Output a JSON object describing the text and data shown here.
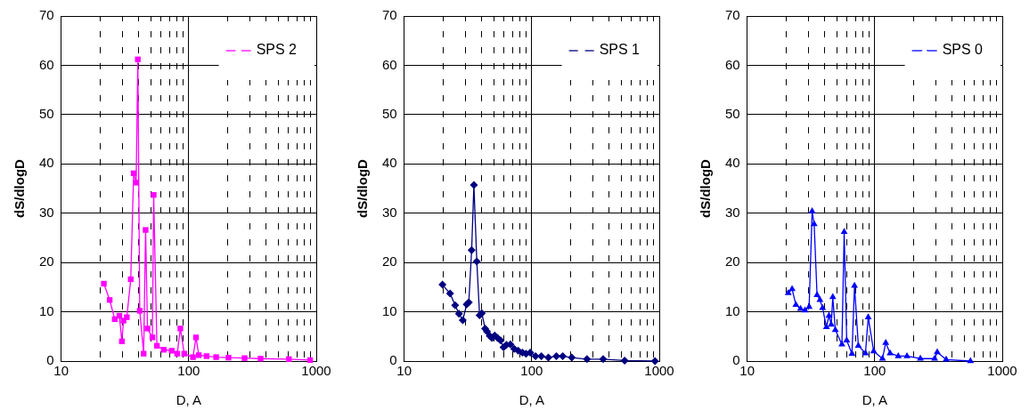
{
  "chart_data": [
    {
      "type": "line",
      "xlabel": "D, A",
      "ylabel": "dS/dlogD",
      "log": "x",
      "grid": true,
      "legend": "top right",
      "marker": "square",
      "xlim": [
        10,
        1000
      ],
      "ylim": [
        0,
        70
      ],
      "xticks": [
        10,
        {
          "value": 20,
          "label": null
        },
        {
          "value": 30,
          "label": null
        },
        {
          "value": 40,
          "label": null
        },
        {
          "value": 50,
          "label": null
        },
        {
          "value": 60,
          "label": null
        },
        {
          "value": 70,
          "label": null
        },
        {
          "value": 80,
          "label": null
        },
        {
          "value": 90,
          "label": null
        },
        100,
        {
          "value": 200,
          "label": null
        },
        {
          "value": 300,
          "label": null
        },
        {
          "value": 400,
          "label": null
        },
        {
          "value": 500,
          "label": null
        },
        {
          "value": 600,
          "label": null
        },
        {
          "value": 700,
          "label": null
        },
        {
          "value": 800,
          "label": null
        },
        {
          "value": 900,
          "label": null
        },
        1000
      ],
      "yticks": [
        0,
        10,
        20,
        30,
        40,
        50,
        60,
        70
      ],
      "series": [
        {
          "name": "SPS 2",
          "color": "#ff00ff",
          "x": [
            21.6,
            24.0,
            26.3,
            28.6,
            29.9,
            30.8,
            32.7,
            35.1,
            37.0,
            38.7,
            39.9,
            41.3,
            44.3,
            45.9,
            47.5,
            51.9,
            53.1,
            56.3,
            63.7,
            73.6,
            81.2,
            86.0,
            92.2,
            108,
            114,
            120,
            138,
            164,
            205,
            274,
            366,
            610,
            895
          ],
          "values": [
            15.7,
            12.4,
            8.5,
            9.2,
            4.0,
            8.2,
            8.9,
            16.6,
            38.1,
            36.2,
            61.2,
            10.2,
            1.5,
            26.6,
            6.6,
            4.8,
            33.7,
            3.1,
            2.3,
            2.1,
            1.5,
            6.6,
            1.5,
            0.8,
            4.8,
            1.2,
            1.0,
            0.8,
            0.7,
            0.6,
            0.5,
            0.4,
            0.2
          ]
        }
      ]
    },
    {
      "type": "line",
      "xlabel": "D, A",
      "ylabel": "dS/dlogD",
      "log": "x",
      "grid": true,
      "legend": "top right",
      "marker": "diamond",
      "xlim": [
        10,
        1000
      ],
      "ylim": [
        0,
        70
      ],
      "xticks": [
        10,
        {
          "value": 20,
          "label": null
        },
        {
          "value": 30,
          "label": null
        },
        {
          "value": 40,
          "label": null
        },
        {
          "value": 50,
          "label": null
        },
        {
          "value": 60,
          "label": null
        },
        {
          "value": 70,
          "label": null
        },
        {
          "value": 80,
          "label": null
        },
        {
          "value": 90,
          "label": null
        },
        100,
        {
          "value": 200,
          "label": null
        },
        {
          "value": 300,
          "label": null
        },
        {
          "value": 400,
          "label": null
        },
        {
          "value": 500,
          "label": null
        },
        {
          "value": 600,
          "label": null
        },
        {
          "value": 700,
          "label": null
        },
        {
          "value": 800,
          "label": null
        },
        {
          "value": 900,
          "label": null
        },
        1000
      ],
      "yticks": [
        0,
        10,
        20,
        30,
        40,
        50,
        60,
        70
      ],
      "series": [
        {
          "name": "SPS 1",
          "color": "#000080",
          "x": [
            19.95,
            22.9,
            25.1,
            26.9,
            28.8,
            30.9,
            32.1,
            33.8,
            35.2,
            37.1,
            39.0,
            40.6,
            43.1,
            44.6,
            46.9,
            48.7,
            51.3,
            54.0,
            57.0,
            60.1,
            63.4,
            68.1,
            73.0,
            78.3,
            84.5,
            90.2,
            97.2,
            107,
            119,
            135,
            156,
            175,
            206,
            271,
            363,
            535,
            926
          ],
          "values": [
            15.5,
            13.7,
            11.3,
            9.6,
            8.3,
            11.5,
            11.9,
            22.5,
            35.7,
            20.2,
            9.3,
            9.7,
            6.6,
            6.0,
            5.1,
            4.7,
            5.2,
            4.7,
            4.2,
            2.8,
            3.3,
            3.4,
            2.5,
            2.1,
            1.7,
            1.5,
            1.7,
            1.0,
            1.0,
            0.7,
            1.0,
            1.0,
            0.7,
            0.4,
            0.4,
            0.1,
            0.0
          ]
        }
      ]
    },
    {
      "type": "line",
      "xlabel": "D, A",
      "ylabel": "dS/dlogD",
      "log": "x",
      "grid": true,
      "legend": "top right",
      "marker": "triangle",
      "xlim": [
        10,
        1000
      ],
      "ylim": [
        0,
        70
      ],
      "xticks": [
        10,
        {
          "value": 20,
          "label": null
        },
        {
          "value": 30,
          "label": null
        },
        {
          "value": 40,
          "label": null
        },
        {
          "value": 50,
          "label": null
        },
        {
          "value": 60,
          "label": null
        },
        {
          "value": 70,
          "label": null
        },
        {
          "value": 80,
          "label": null
        },
        {
          "value": 90,
          "label": null
        },
        100,
        {
          "value": 200,
          "label": null
        },
        {
          "value": 300,
          "label": null
        },
        {
          "value": 400,
          "label": null
        },
        {
          "value": 500,
          "label": null
        },
        {
          "value": 600,
          "label": null
        },
        {
          "value": 700,
          "label": null
        },
        {
          "value": 800,
          "label": null
        },
        {
          "value": 900,
          "label": null
        },
        1000
      ],
      "yticks": [
        0,
        10,
        20,
        30,
        40,
        50,
        60,
        70
      ],
      "series": [
        {
          "name": "SPS 0",
          "color": "#0000ff",
          "x": [
            21.0,
            22.5,
            24.1,
            26.2,
            28.4,
            30.6,
            32.3,
            33.5,
            35.3,
            37.2,
            39.0,
            41.8,
            43.8,
            45.6,
            46.9,
            49.1,
            55.3,
            57.6,
            60.3,
            66.3,
            69.4,
            74.4,
            84.6,
            88.9,
            98.1,
            115,
            122,
            132,
            153,
            179,
            228,
            295,
            309,
            363,
            563
          ],
          "values": [
            13.8,
            14.6,
            11.4,
            10.6,
            10.3,
            11.0,
            30.4,
            27.8,
            13.4,
            12.4,
            10.8,
            6.9,
            9.2,
            7.4,
            13.0,
            6.3,
            3.4,
            26.2,
            4.2,
            1.5,
            15.3,
            3.1,
            1.6,
            8.9,
            2.0,
            0.5,
            3.7,
            1.6,
            1.0,
            1.0,
            0.5,
            0.5,
            1.8,
            0.3,
            0.0
          ]
        }
      ]
    }
  ]
}
